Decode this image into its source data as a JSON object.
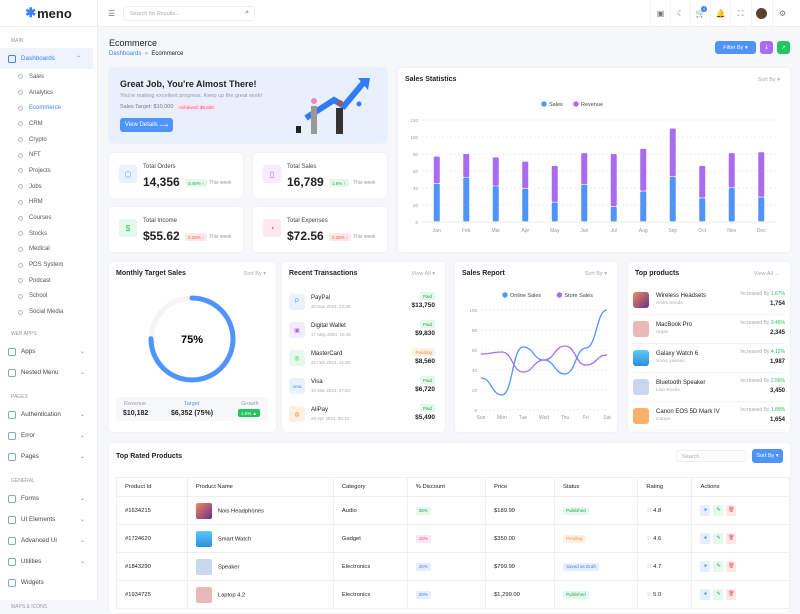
{
  "app": {
    "logo": "meno"
  },
  "sidebar": {
    "sections": [
      "MAIN",
      "WEB APPS",
      "PAGES",
      "GENERAL",
      "MAPS & ICONS"
    ],
    "dashboards": "Dashboards",
    "dash_items": [
      "Sales",
      "Analytics",
      "Ecommerce",
      "CRM",
      "Crypto",
      "NFT",
      "Projects",
      "Jobs",
      "HRM",
      "Courses",
      "Stocks",
      "Medical",
      "POS System",
      "Podcast",
      "School",
      "Social Media"
    ],
    "webapps": [
      "Apps",
      "Nested Menu"
    ],
    "pages": [
      "Authentication",
      "Error",
      "Pages"
    ],
    "general": [
      "Forms",
      "UI Elements",
      "Advanced UI",
      "Utilities",
      "Widgets"
    ]
  },
  "topbar": {
    "search_placeholder": "Search for Results...",
    "cart_count": "4"
  },
  "page": {
    "title": "Ecommerce",
    "breadcrumb": [
      "Dashboards",
      "Ecommerce"
    ],
    "filter": "Filter By"
  },
  "banner": {
    "title": "Great Job, You're Almost There!",
    "subtitle": "You're making excellent progress. Keep up the great work!",
    "target": "Sales Target: $10,000",
    "achieved": "Achieved: $8,500",
    "button": "View Details"
  },
  "stats": [
    {
      "label": "Total Orders",
      "value": "14,356",
      "change": "0.45% ↑",
      "period": "This week"
    },
    {
      "label": "Total Sales",
      "value": "16,789",
      "change": "1.5% ↑",
      "period": "This week"
    },
    {
      "label": "Total Income",
      "value": "$55.62",
      "change": "0.25% ↓",
      "period": "This week"
    },
    {
      "label": "Total Expenses",
      "value": "$72.56",
      "change": "0.35% ↓",
      "period": "This week"
    }
  ],
  "sales_stats": {
    "title": "Sales Statistics",
    "sort": "Sort By"
  },
  "monthly": {
    "title": "Monthly Target Sales",
    "sort": "Sort By",
    "percent": "75%",
    "progress": 0.75,
    "revenue_label": "Revenue",
    "revenue": "$10,182",
    "target_label": "Target",
    "target": "$6,352 (75%)",
    "growth_label": "Growth",
    "growth": "1.5% ▲"
  },
  "transactions": {
    "title": "Recent Transactions",
    "view_all": "View All",
    "items": [
      {
        "name": "PayPal",
        "date": "30 Nov 2024, 12:30",
        "status": "Paid",
        "amount": "$13,750"
      },
      {
        "name": "Digital Wallet",
        "date": "17 May 2024, 15:45",
        "status": "Paid",
        "amount": "$9,830"
      },
      {
        "name": "MasterCard",
        "date": "22 Feb 2024, 14:30",
        "status": "Pending",
        "amount": "$8,560"
      },
      {
        "name": "Visa",
        "date": "10 Mar 2024, 17:00",
        "status": "Paid",
        "amount": "$6,720"
      },
      {
        "name": "AliPay",
        "date": "25 Apr 2024, 08:10",
        "status": "Paid",
        "amount": "$5,490"
      }
    ]
  },
  "sales_report": {
    "title": "Sales Report",
    "sort": "Sort By"
  },
  "top_products": {
    "title": "Top products",
    "view_all": "View All",
    "inc_label": "Increased By",
    "items": [
      {
        "name": "Wireless Headsets",
        "brand": "Amini trends",
        "pct": "1.67%",
        "count": "1,754"
      },
      {
        "name": "MacBook Pro",
        "brand": "Apple",
        "pct": "3.45%",
        "count": "2,345"
      },
      {
        "name": "Galaxy Watch 6",
        "brand": "Sonic yseries",
        "pct": "4.12%",
        "count": "1,987"
      },
      {
        "name": "Bluetooth Speaker",
        "brand": "Lion Rocks",
        "pct": "2.56%",
        "count": "3,450"
      },
      {
        "name": "Canon EOS 5D Mark IV",
        "brand": "Canon",
        "pct": "1.89%",
        "count": "1,654"
      }
    ]
  },
  "table": {
    "title": "Top Rated Products",
    "search_placeholder": "Search",
    "sort": "Sort By",
    "headers": [
      "Product Id",
      "Product Name",
      "Category",
      "% Discount",
      "Price",
      "Status",
      "Rating",
      "Actions"
    ],
    "rows": [
      {
        "id": "#1634215",
        "name": "Nois Headphones",
        "category": "Audio",
        "discount": "35%",
        "price": "$189.99",
        "status": "Published",
        "rating": "4.8"
      },
      {
        "id": "#1724620",
        "name": "Smart Watch",
        "category": "Gadget",
        "discount": "15%",
        "price": "$350.00",
        "status": "Pending",
        "rating": "4.6"
      },
      {
        "id": "#1843290",
        "name": "Speaker",
        "category": "Electronics",
        "discount": "25%",
        "price": "$799.99",
        "status": "Saved as Draft",
        "rating": "4.7"
      },
      {
        "id": "#1934725",
        "name": "Laptop 4.2",
        "category": "Electronics",
        "discount": "20%",
        "price": "$1,299.00",
        "status": "Published",
        "rating": "5.0"
      }
    ]
  },
  "chart_data": [
    {
      "type": "bar",
      "stacked": true,
      "title": "Sales Statistics",
      "categories": [
        "Jan",
        "Feb",
        "Mar",
        "Apr",
        "May",
        "Jun",
        "Jul",
        "Aug",
        "Sep",
        "Oct",
        "Nov",
        "Dec"
      ],
      "series": [
        {
          "name": "Sales",
          "color": "#4f94fb",
          "values": [
            45,
            52,
            42,
            39,
            23,
            44,
            18,
            36,
            53,
            28,
            40,
            29
          ]
        },
        {
          "name": "Revenue",
          "color": "#a96cf0",
          "values": [
            32,
            28,
            34,
            32,
            43,
            37,
            62,
            50,
            57,
            38,
            41,
            53
          ]
        }
      ],
      "ylim": [
        0,
        120
      ],
      "yticks": [
        0,
        20,
        40,
        60,
        80,
        100,
        120
      ],
      "legend": "top-center"
    },
    {
      "type": "line",
      "title": "Sales Report",
      "categories": [
        "Sun",
        "Mon",
        "Tue",
        "Wed",
        "Thu",
        "Fri",
        "Sat"
      ],
      "series": [
        {
          "name": "Online Sales",
          "color": "#4f94fb",
          "values": [
            32,
            15,
            63,
            50,
            36,
            62,
            100
          ]
        },
        {
          "name": "Store Sales",
          "color": "#a96cf0",
          "values": [
            56,
            58,
            38,
            50,
            64,
            45,
            55
          ]
        }
      ],
      "ylim": [
        0,
        100
      ],
      "yticks": [
        0,
        20,
        40,
        60,
        80,
        100
      ],
      "legend": "top-center"
    }
  ]
}
